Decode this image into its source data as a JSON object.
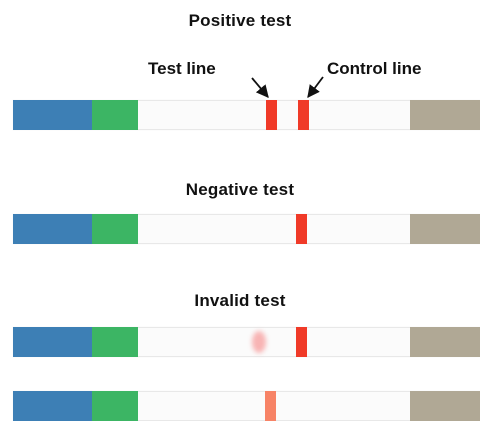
{
  "headings": {
    "positive": "Positive test",
    "negative": "Negative test",
    "invalid": "Invalid test"
  },
  "callouts": {
    "test_line": "Test line",
    "control_line": "Control line"
  },
  "colors": {
    "blue": "#3d7fb5",
    "green": "#3cb564",
    "pad": "#b0a895",
    "red": "#f03a28",
    "faint_red": "#f8b4b4",
    "orange": "#f78366"
  },
  "strips": [
    {
      "label": "positive",
      "marks": [
        "test-line",
        "control-line"
      ]
    },
    {
      "label": "negative",
      "marks": [
        "control-line"
      ]
    },
    {
      "label": "invalid",
      "marks": [
        "faint-smudge",
        "control-line"
      ]
    },
    {
      "label": "invalid",
      "marks": [
        "test-line-only"
      ]
    }
  ]
}
